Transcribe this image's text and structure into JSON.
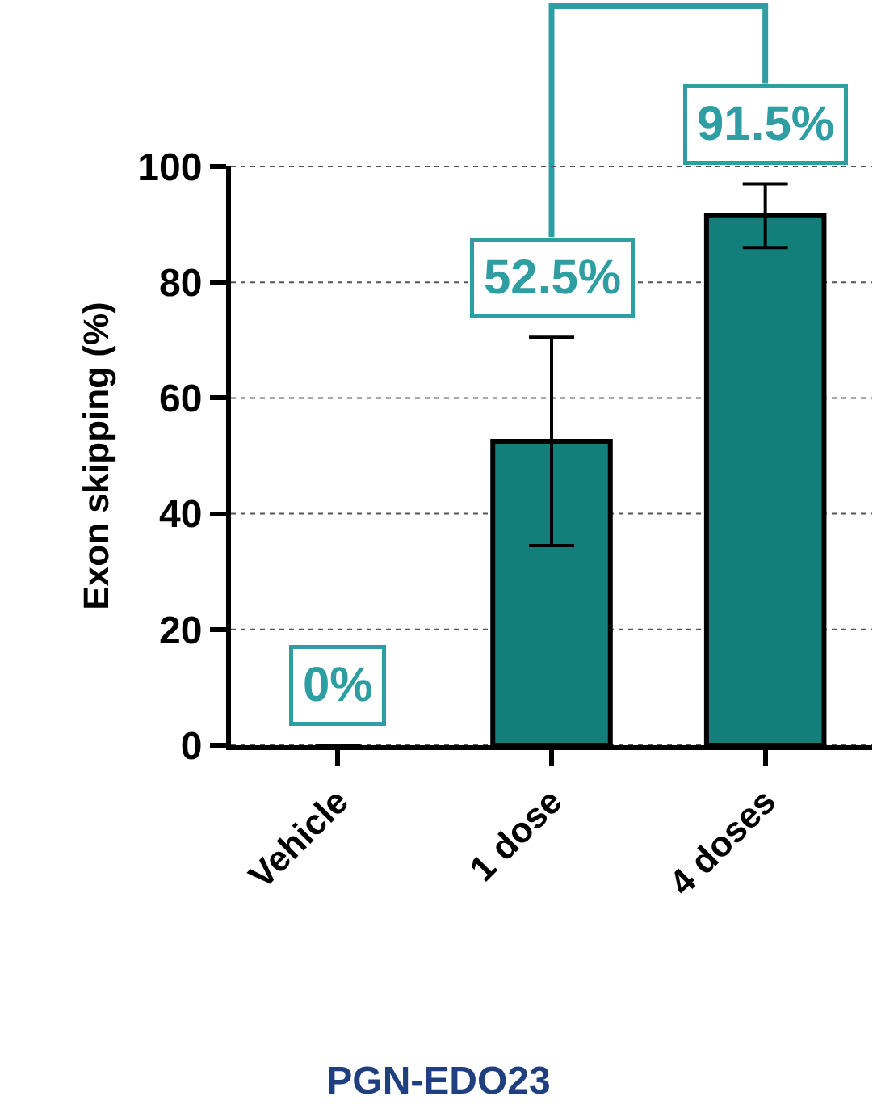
{
  "chart_data": {
    "type": "bar",
    "title": "PGN-EDO23",
    "ylabel": "Exon skipping (%)",
    "categories": [
      "Vehicle",
      "1 dose",
      "4 doses"
    ],
    "values": [
      0,
      52.5,
      91.5
    ],
    "color": "#127f7a",
    "errors": [
      null,
      [
        34.5,
        70.5
      ],
      [
        86,
        97
      ]
    ],
    "value_labels": [
      "0%",
      "52.5%",
      "91.5%"
    ],
    "ylim": [
      0,
      100
    ],
    "yticks": [
      0,
      20,
      40,
      60,
      80,
      100
    ],
    "grid": "y"
  }
}
